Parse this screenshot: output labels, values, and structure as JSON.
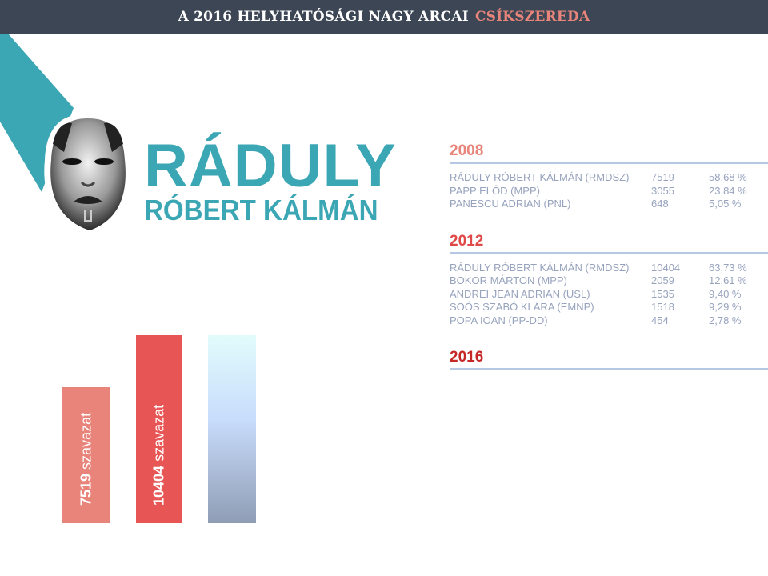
{
  "header": {
    "title": "A 2016 HELYHATÓSÁGI NAGY ARCAI",
    "city": "CSÍKSZEREDA"
  },
  "candidate": {
    "last_name": "RÁDULY",
    "first_name": "RÓBERT KÁLMÁN"
  },
  "colors": {
    "teal": "#3ba6b4",
    "bar_2008": "#e8847a",
    "bar_2012": "#e85555",
    "year_2008": "#e8847a",
    "year_2012": "#e04848",
    "year_2016": "#c62828"
  },
  "elections": [
    {
      "year": "2008",
      "rows": [
        {
          "name": "RÁDULY RÓBERT KÁLMÁN (RMDSZ)",
          "votes": "7519",
          "pct": "58,68 %"
        },
        {
          "name": "PAPP ELŐD (MPP)",
          "votes": "3055",
          "pct": "23,84 %"
        },
        {
          "name": "PANESCU ADRIAN (PNL)",
          "votes": "648",
          "pct": "5,05  %"
        }
      ]
    },
    {
      "year": "2012",
      "rows": [
        {
          "name": "RÁDULY RÓBERT KÁLMÁN (RMDSZ)",
          "votes": "10404",
          "pct": "63,73 %"
        },
        {
          "name": "BOKOR MÁRTON (MPP)",
          "votes": "2059",
          "pct": "12,61 %"
        },
        {
          "name": "ANDREI JEAN ADRIAN (USL)",
          "votes": "1535",
          "pct": "9,40 %"
        },
        {
          "name": "SOÓS SZABÓ KLÁRA (EMNP)",
          "votes": "1518",
          "pct": "9,29 %"
        },
        {
          "name": "POPA IOAN (PP-DD)",
          "votes": "454",
          "pct": "2,78  %"
        }
      ]
    },
    {
      "year": "2016",
      "rows": []
    }
  ],
  "bars": [
    {
      "votes": "7519",
      "unit": "szavazat",
      "value": 7519
    },
    {
      "votes": "10404",
      "unit": "szavazat",
      "value": 10404
    },
    {
      "votes": "",
      "unit": "",
      "value": 10404
    }
  ]
}
